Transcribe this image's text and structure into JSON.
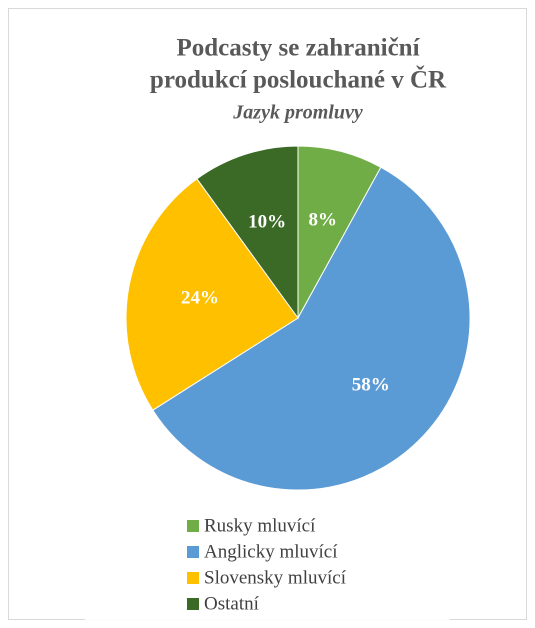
{
  "chart_data": {
    "type": "pie",
    "title": [
      "Podcasty se zahraniční",
      "produkcí poslouchané v ČR"
    ],
    "subtitle": "Jazyk promluvy",
    "categories": [
      "Rusky mluvící",
      "Anglicky mluvící",
      "Slovensky mluvící",
      "Ostatní"
    ],
    "values": [
      8,
      58,
      24,
      10
    ],
    "value_labels": [
      "8%",
      "58%",
      "24%",
      "10%"
    ],
    "colors": [
      "#70ad47",
      "#5b9bd5",
      "#ffc000",
      "#3b6a26"
    ],
    "legend": "bottom"
  }
}
